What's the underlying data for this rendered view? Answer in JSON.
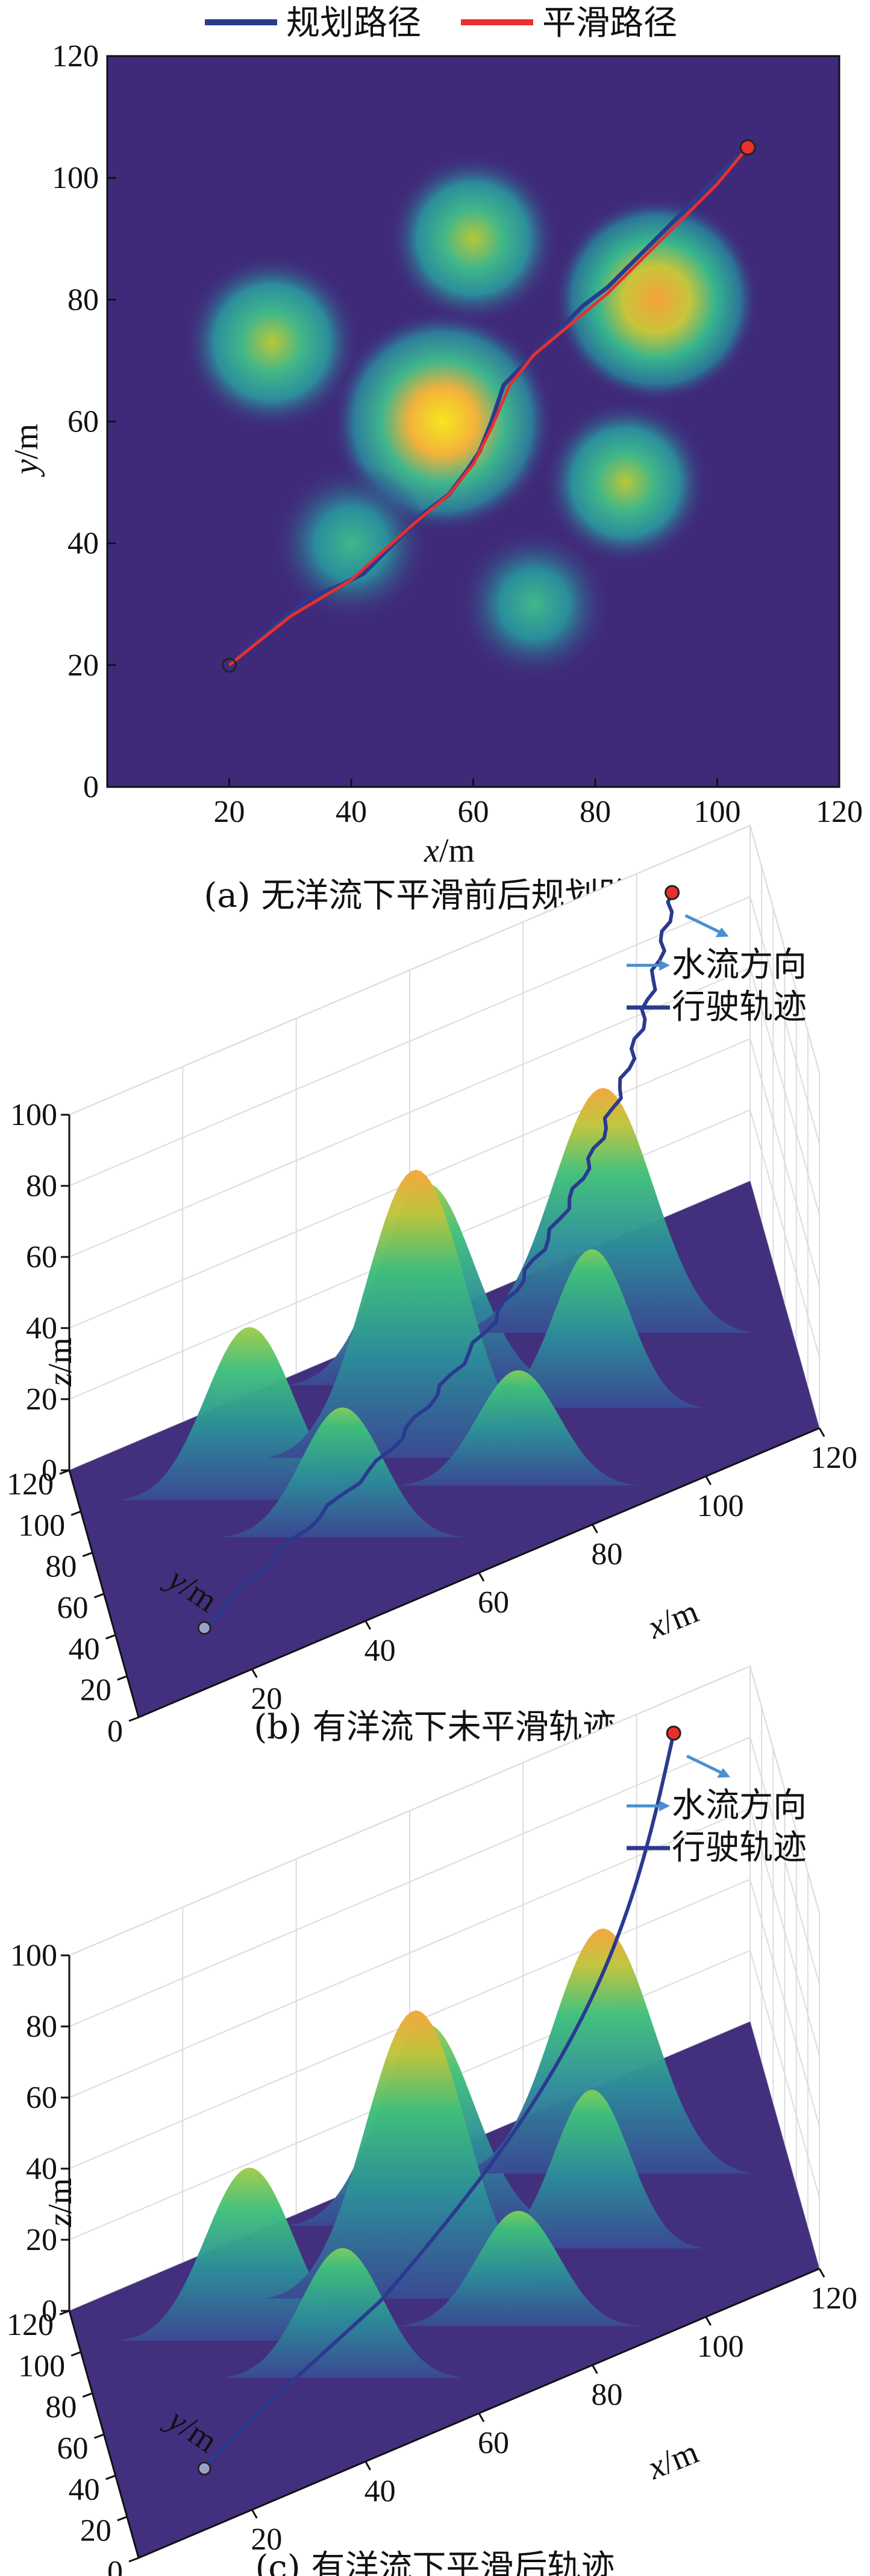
{
  "panels": [
    {
      "caption": "(a) 无洋流下平滑前后规划路径",
      "legend": [
        "规划路径",
        "平滑路径"
      ],
      "xlabel": "x",
      "ylabel": "y",
      "unit": "/m"
    },
    {
      "caption": "(b) 有洋流下未平滑轨迹",
      "legend": [
        "水流方向",
        "行驶轨迹"
      ],
      "xlabel": "x",
      "ylabel": "y",
      "zlabel": "z",
      "unit": "/m"
    },
    {
      "caption": "(c) 有洋流下平滑后轨迹",
      "legend": [
        "水流方向",
        "行驶轨迹"
      ],
      "xlabel": "x",
      "ylabel": "y",
      "zlabel": "z",
      "unit": "/m"
    }
  ],
  "colors": {
    "planned": "#2b3a8f",
    "smooth": "#e8302c",
    "current": "#4a8fd0",
    "track": "#2b3a8f",
    "background": "#3f2a7a"
  },
  "chart_data": [
    {
      "type": "heatmap",
      "xlim": [
        0,
        120
      ],
      "ylim": [
        0,
        120
      ],
      "xticks": [
        20,
        40,
        60,
        80,
        100,
        120
      ],
      "yticks": [
        0,
        20,
        40,
        60,
        80,
        100,
        120
      ],
      "obstacles": [
        {
          "x": 27,
          "y": 73,
          "h": 0.6
        },
        {
          "x": 60,
          "y": 90,
          "h": 0.55
        },
        {
          "x": 55,
          "y": 60,
          "h": 1.0
        },
        {
          "x": 90,
          "y": 80,
          "h": 0.85
        },
        {
          "x": 40,
          "y": 40,
          "h": 0.45
        },
        {
          "x": 85,
          "y": 50,
          "h": 0.5
        },
        {
          "x": 70,
          "y": 30,
          "h": 0.4
        }
      ],
      "start": [
        20,
        20
      ],
      "goal": [
        105,
        105
      ],
      "series": [
        {
          "name": "规划路径",
          "x": [
            20,
            27,
            33,
            38,
            42,
            45,
            48,
            52,
            56,
            59,
            61,
            63,
            65,
            67,
            69,
            72,
            75,
            78,
            82,
            85,
            88,
            92,
            95,
            98,
            101,
            105
          ],
          "y": [
            20,
            26,
            31,
            33,
            35,
            38,
            41,
            45,
            48,
            52,
            55,
            60,
            66,
            68,
            70,
            73,
            76,
            79,
            82,
            85,
            88,
            92,
            95,
            98,
            101,
            105
          ]
        },
        {
          "name": "平滑路径",
          "x": [
            20,
            30,
            40,
            50,
            56,
            60,
            63,
            66,
            70,
            76,
            82,
            88,
            94,
            100,
            105
          ],
          "y": [
            20,
            28,
            34,
            43,
            48,
            53,
            59,
            66,
            71,
            76,
            81,
            87,
            93,
            99,
            105
          ]
        }
      ]
    },
    {
      "type": "surface3d",
      "xlim": [
        0,
        120
      ],
      "ylim": [
        0,
        120
      ],
      "zlim": [
        0,
        100
      ],
      "xticks": [
        20,
        40,
        60,
        80,
        100,
        120
      ],
      "yticks": [
        0,
        20,
        40,
        60,
        80,
        100,
        120
      ],
      "zticks": [
        0,
        20,
        40,
        60,
        80,
        100
      ],
      "smoothed": false
    },
    {
      "type": "surface3d",
      "xlim": [
        0,
        120
      ],
      "ylim": [
        0,
        120
      ],
      "zlim": [
        0,
        100
      ],
      "xticks": [
        20,
        40,
        60,
        80,
        100,
        120
      ],
      "yticks": [
        0,
        20,
        40,
        60,
        80,
        100,
        120
      ],
      "zticks": [
        0,
        20,
        40,
        60,
        80,
        100
      ],
      "smoothed": true
    }
  ]
}
